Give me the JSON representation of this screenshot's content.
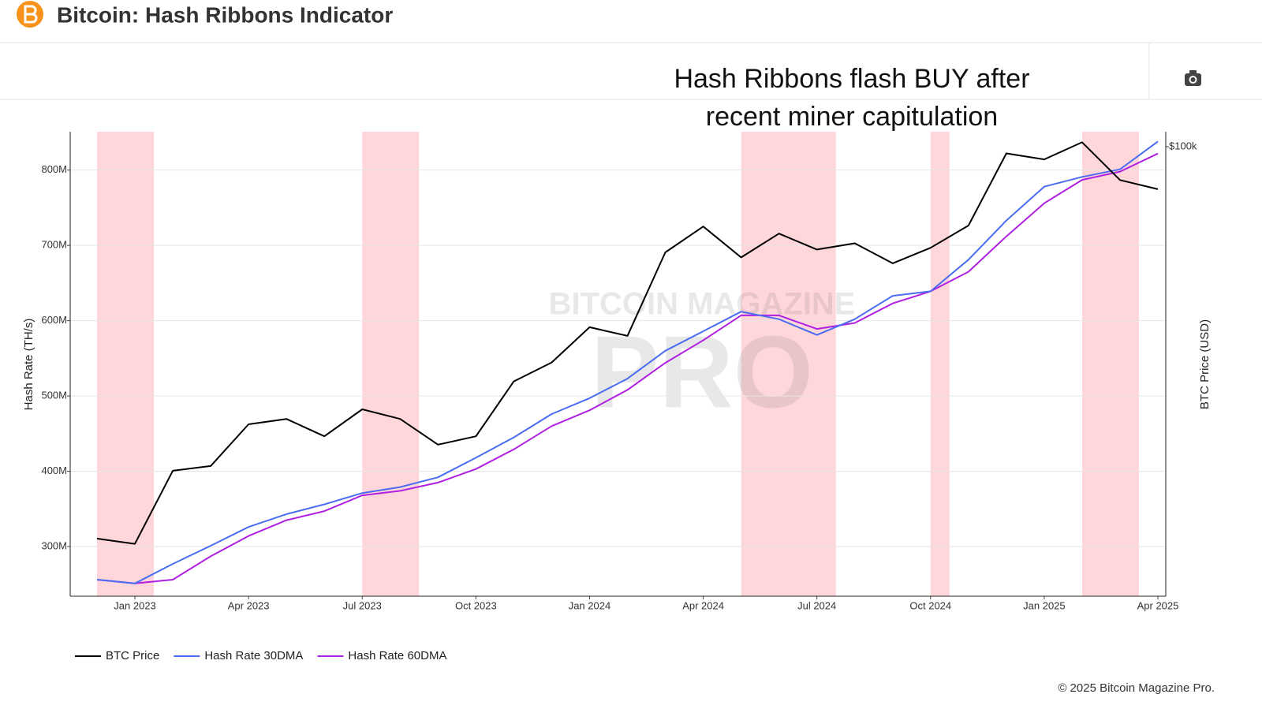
{
  "header": {
    "title": "Bitcoin: Hash Ribbons Indicator"
  },
  "copyright": "© 2025 Bitcoin Magazine Pro.",
  "watermark": [
    "BITCOIN MAGAZINE",
    "PRO"
  ],
  "chart_data": {
    "type": "line",
    "title": "Hash Ribbons flash BUY after recent miner capitulation",
    "y_label": "Hash Rate (TH/s)",
    "y2_label": "BTC Price (USD)",
    "x": [
      "2022-12",
      "2023-01",
      "2023-02",
      "2023-03",
      "2023-04",
      "2023-05",
      "2023-06",
      "2023-07",
      "2023-08",
      "2023-09",
      "2023-10",
      "2023-11",
      "2023-12",
      "2024-01",
      "2024-02",
      "2024-03",
      "2024-04",
      "2024-05",
      "2024-06",
      "2024-07",
      "2024-08",
      "2024-09",
      "2024-10",
      "2024-11",
      "2024-12",
      "2025-01",
      "2025-02",
      "2025-03",
      "2025-04"
    ],
    "xlim": [
      "2022-12",
      "2025-04"
    ],
    "xticks": [
      {
        "value": "2023-01",
        "label": "Jan 2023"
      },
      {
        "value": "2023-04",
        "label": "Apr 2023"
      },
      {
        "value": "2023-07",
        "label": "Jul 2023"
      },
      {
        "value": "2023-10",
        "label": "Oct 2023"
      },
      {
        "value": "2024-01",
        "label": "Jan 2024"
      },
      {
        "value": "2024-04",
        "label": "Apr 2024"
      },
      {
        "value": "2024-07",
        "label": "Jul 2024"
      },
      {
        "value": "2024-10",
        "label": "Oct 2024"
      },
      {
        "value": "2025-01",
        "label": "Jan 2025"
      },
      {
        "value": "2025-04",
        "label": "Apr 2025"
      }
    ],
    "ylim": [
      234,
      851
    ],
    "yticks": [
      {
        "value": 300,
        "label": "300M"
      },
      {
        "value": 400,
        "label": "400M"
      },
      {
        "value": 500,
        "label": "500M"
      },
      {
        "value": 600,
        "label": "600M"
      },
      {
        "value": 700,
        "label": "700M"
      },
      {
        "value": 800,
        "label": "800M"
      }
    ],
    "y2lim": [
      13100,
      107000
    ],
    "y2_log": true,
    "y2ticks": [
      {
        "value": 100000,
        "label": "$100k"
      }
    ],
    "grid": true,
    "series": [
      {
        "name": "BTC Price",
        "color": "#000000",
        "axis": "y2",
        "values": [
          17000,
          16600,
          23100,
          23600,
          28500,
          29200,
          27000,
          30500,
          29200,
          26000,
          27000,
          34600,
          37700,
          44200,
          42500,
          62000,
          69700,
          60600,
          67500,
          62800,
          64600,
          59000,
          63300,
          70000,
          97000,
          94400,
          102000,
          86000,
          82500
        ]
      },
      {
        "name": "Hash Rate 30DMA",
        "color": "#4a6cf0",
        "values": [
          256,
          251,
          277,
          301,
          326,
          343,
          356,
          371,
          379,
          392,
          418,
          445,
          476,
          497,
          523,
          560,
          586,
          612,
          602,
          581,
          602,
          633,
          639,
          681,
          733,
          778,
          791,
          801,
          838
        ]
      },
      {
        "name": "Hash Rate 60DMA",
        "color": "#b020e0",
        "values": [
          256,
          251,
          256,
          287,
          314,
          335,
          347,
          368,
          374,
          385,
          403,
          429,
          460,
          481,
          508,
          544,
          574,
          607,
          607,
          589,
          597,
          623,
          639,
          665,
          712,
          756,
          787,
          798,
          822
        ]
      }
    ],
    "bands": [
      {
        "start": "2022-12",
        "end": "2023-01"
      },
      {
        "start": "2023-07",
        "end": "2023-08"
      },
      {
        "start": "2024-05",
        "end": "2024-07"
      },
      {
        "start": "2024-10",
        "end": "2024-10"
      },
      {
        "start": "2025-02",
        "end": "2025-03"
      }
    ],
    "band_color": "#ffc9cf"
  }
}
